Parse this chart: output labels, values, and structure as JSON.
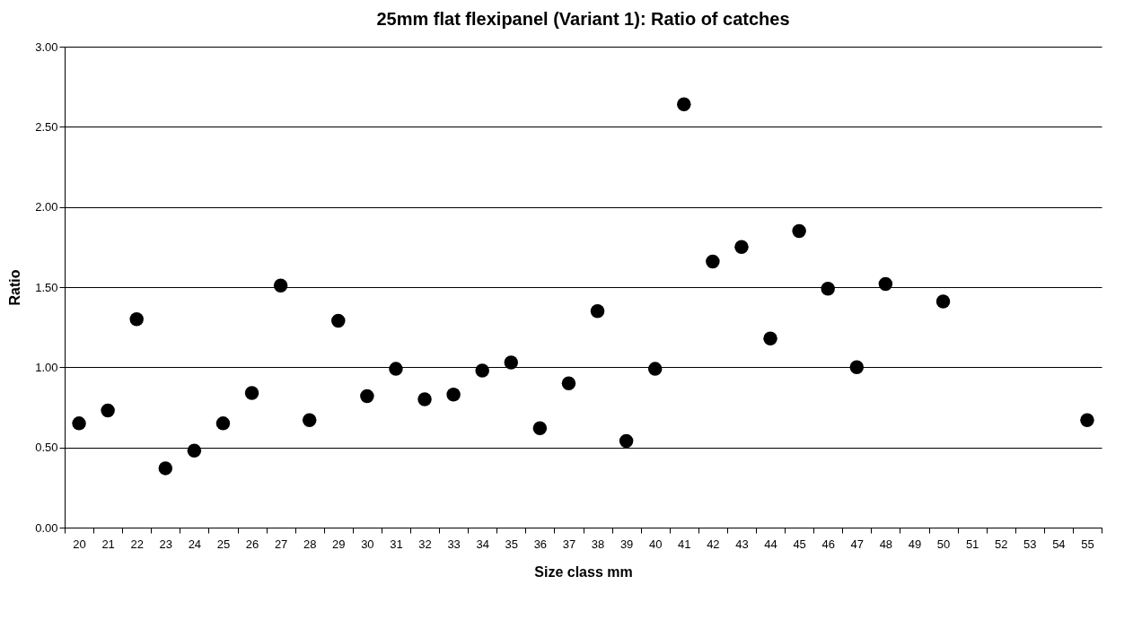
{
  "chart_data": {
    "type": "scatter",
    "title": "25mm flat flexipanel (Variant 1): Ratio of catches",
    "xlabel": "Size class mm",
    "ylabel": "Ratio",
    "categories": [
      "20",
      "21",
      "22",
      "23",
      "24",
      "25",
      "26",
      "27",
      "28",
      "29",
      "30",
      "31",
      "32",
      "33",
      "34",
      "35",
      "36",
      "37",
      "38",
      "39",
      "40",
      "41",
      "42",
      "43",
      "44",
      "45",
      "46",
      "47",
      "48",
      "49",
      "50",
      "51",
      "52",
      "53",
      "54",
      "55"
    ],
    "series": [
      {
        "color": "#000000",
        "values": [
          0.65,
          0.73,
          1.3,
          0.37,
          0.48,
          0.65,
          0.84,
          1.51,
          0.67,
          1.29,
          0.82,
          0.99,
          0.8,
          0.83,
          0.98,
          1.03,
          0.62,
          0.9,
          1.35,
          0.54,
          0.99,
          2.64,
          1.66,
          1.75,
          1.18,
          1.85,
          1.49,
          1.0,
          1.52,
          null,
          1.41,
          null,
          null,
          null,
          null,
          0.67
        ]
      }
    ],
    "ylim": [
      0,
      3
    ],
    "yticks": [
      {
        "value": 0,
        "label": "0.00"
      },
      {
        "value": 0.5,
        "label": "0.50"
      },
      {
        "value": 1,
        "label": "1.00"
      },
      {
        "value": 1.5,
        "label": "1.50"
      },
      {
        "value": 2,
        "label": "2.00"
      },
      {
        "value": 2.5,
        "label": "2.50"
      },
      {
        "value": 3,
        "label": "3.00"
      }
    ],
    "grid": "y",
    "marker": "circle"
  }
}
